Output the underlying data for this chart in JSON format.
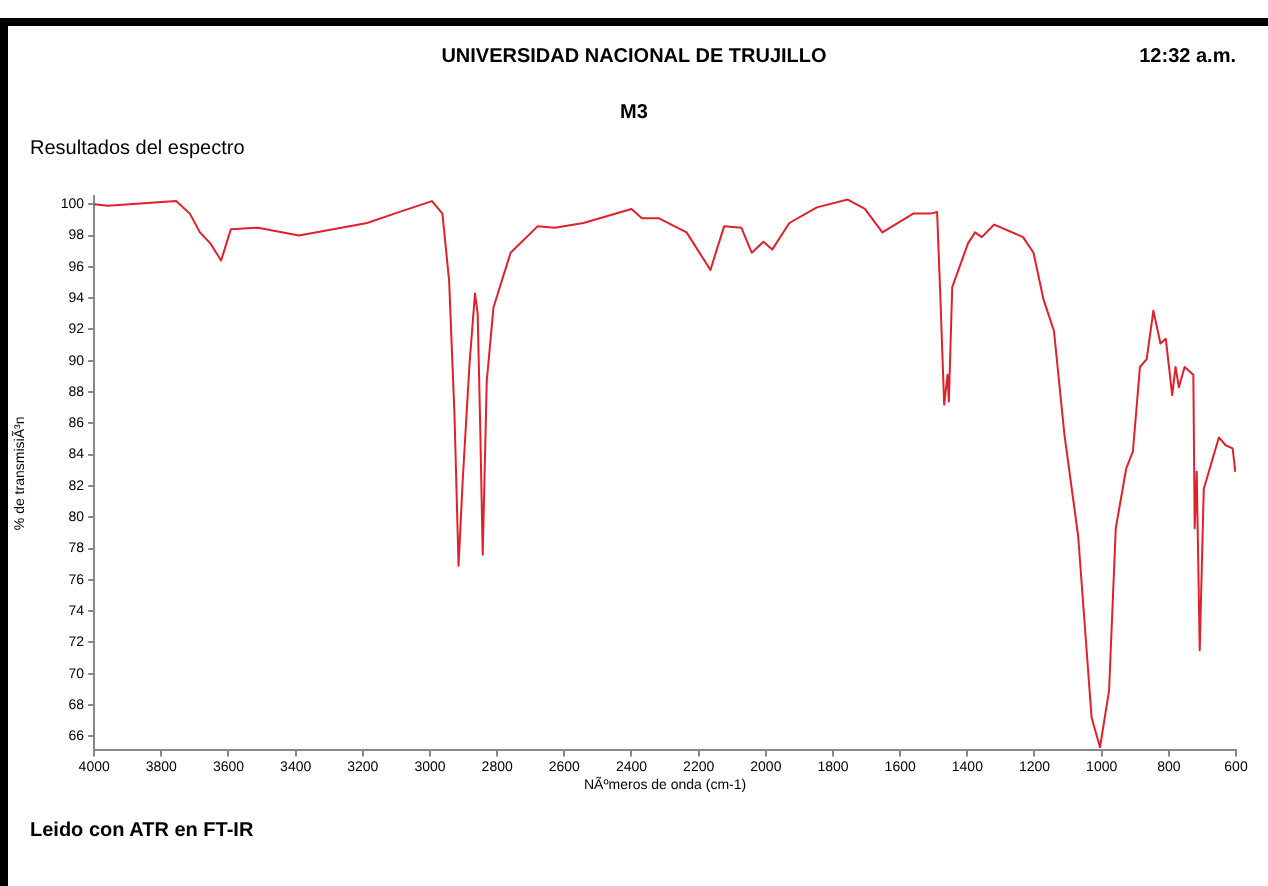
{
  "chart_data": {
    "type": "line",
    "title": "UNIVERSIDAD NACIONAL DE TRUJILLO",
    "subtitle": "M3",
    "xlabel": "NÃºmeros de onda (cm-1)",
    "ylabel": "% de transmisiÃ³n",
    "annotations": [
      "12:32 a.m.",
      "Resultados del espectro",
      "Leido con ATR en FT-IR"
    ],
    "xlim": [
      4000,
      600
    ],
    "xticks": [
      4000,
      3800,
      3600,
      3400,
      3200,
      3000,
      2800,
      2600,
      2400,
      2200,
      2000,
      1800,
      1600,
      1400,
      1200,
      1000,
      800,
      600
    ],
    "ylim": [
      65.1,
      100.5
    ],
    "yticks": [
      66,
      68,
      70,
      72,
      74,
      76,
      78,
      80,
      82,
      84,
      86,
      88,
      90,
      92,
      94,
      96,
      98,
      100
    ],
    "marker": "none",
    "line_style": "solid",
    "x": [
      4000,
      3959,
      3756,
      3715,
      3685,
      3654,
      3622,
      3593,
      3512,
      3390,
      3187,
      3106,
      2994,
      2963,
      2943,
      2927,
      2915,
      2902,
      2882,
      2866,
      2858,
      2850,
      2843,
      2831,
      2811,
      2760,
      2679,
      2628,
      2543,
      2400,
      2369,
      2318,
      2236,
      2165,
      2124,
      2073,
      2042,
      2007,
      1981,
      1930,
      1848,
      1756,
      1705,
      1653,
      1561,
      1510,
      1490,
      1480,
      1469,
      1459,
      1455,
      1445,
      1398,
      1377,
      1357,
      1320,
      1234,
      1203,
      1173,
      1142,
      1111,
      1070,
      1030,
      1005,
      978,
      958,
      927,
      907,
      886,
      866,
      846,
      825,
      809,
      790,
      780,
      770,
      753,
      727,
      723,
      717,
      708,
      696,
      651,
      631,
      610,
      602
    ],
    "series": [
      {
        "color": "#e0202a",
        "values": [
          100,
          99.9,
          100.2,
          99.4,
          98.2,
          97.5,
          96.4,
          98.4,
          98.5,
          98.0,
          98.8,
          99.4,
          100.2,
          99.4,
          95.1,
          86.5,
          76.9,
          82.6,
          89.9,
          94.3,
          93.0,
          85.3,
          77.6,
          88.7,
          93.4,
          96.9,
          98.6,
          98.5,
          98.8,
          99.7,
          99.1,
          99.1,
          98.2,
          95.8,
          98.6,
          98.5,
          96.9,
          97.6,
          97.1,
          98.8,
          99.8,
          100.3,
          99.7,
          98.2,
          99.4,
          99.4,
          99.5,
          93.9,
          87.2,
          89.1,
          87.4,
          94.7,
          97.5,
          98.2,
          97.9,
          98.7,
          97.9,
          96.9,
          93.9,
          91.9,
          85.3,
          78.8,
          67.2,
          65.3,
          68.9,
          79.3,
          83.1,
          84.2,
          89.6,
          90.1,
          93.2,
          91.1,
          91.4,
          87.8,
          89.6,
          88.3,
          89.6,
          89.1,
          79.3,
          82.9,
          71.5,
          81.8,
          85.1,
          84.6,
          84.4,
          82.9
        ]
      }
    ]
  }
}
